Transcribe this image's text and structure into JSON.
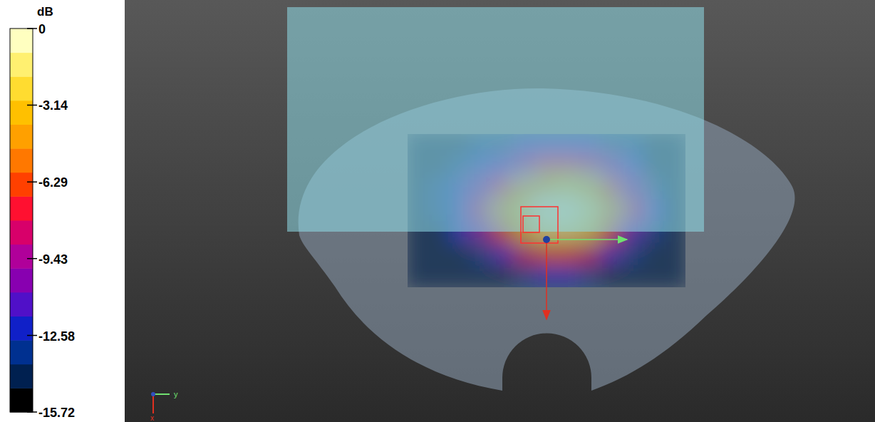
{
  "chart_data": {
    "type": "heatmap",
    "tick_labels": false,
    "axis_labels": {
      "x": "x",
      "y": "y"
    },
    "colorbar": {
      "title": "dB",
      "lim": [
        -15.72,
        0
      ],
      "ticks": [
        0,
        -3.14,
        -6.29,
        -9.43,
        -12.58,
        -15.72
      ]
    },
    "cells": [
      [
        -14.5,
        -14.5,
        -14,
        -13.5,
        -13,
        -12.5,
        -12,
        -12,
        -12.5,
        -13,
        -13.5,
        -14,
        -14.5
      ],
      [
        -14.5,
        -14,
        -13.5,
        -12.5,
        -11,
        -9,
        -7.5,
        -7.5,
        -8.5,
        -10.5,
        -12.5,
        -14,
        -14.5
      ],
      [
        -14.5,
        -13.5,
        -12.5,
        -10.5,
        -7,
        -4.5,
        -3,
        -2.5,
        -3.5,
        -6,
        -10,
        -13,
        -14.5
      ],
      [
        -14.5,
        -13.5,
        -12,
        -8.5,
        -4.5,
        -2,
        -0.8,
        -0.5,
        -1.5,
        -4,
        -8.5,
        -12.5,
        -14.5
      ],
      [
        -14.5,
        -14,
        -12.5,
        -10,
        -6,
        -3,
        -1.5,
        -1,
        -2.5,
        -6,
        -11,
        -13.5,
        -14.5
      ],
      [
        -14.5,
        -14.5,
        -14,
        -13,
        -11,
        -8,
        -6,
        -6,
        -8,
        -11.5,
        -13.5,
        -14.5,
        -14.5
      ],
      [
        -14.5,
        -14.5,
        -14.5,
        -14.5,
        -14,
        -13,
        -12,
        -12,
        -13,
        -14,
        -14.5,
        -14.5,
        -14.5
      ]
    ]
  }
}
